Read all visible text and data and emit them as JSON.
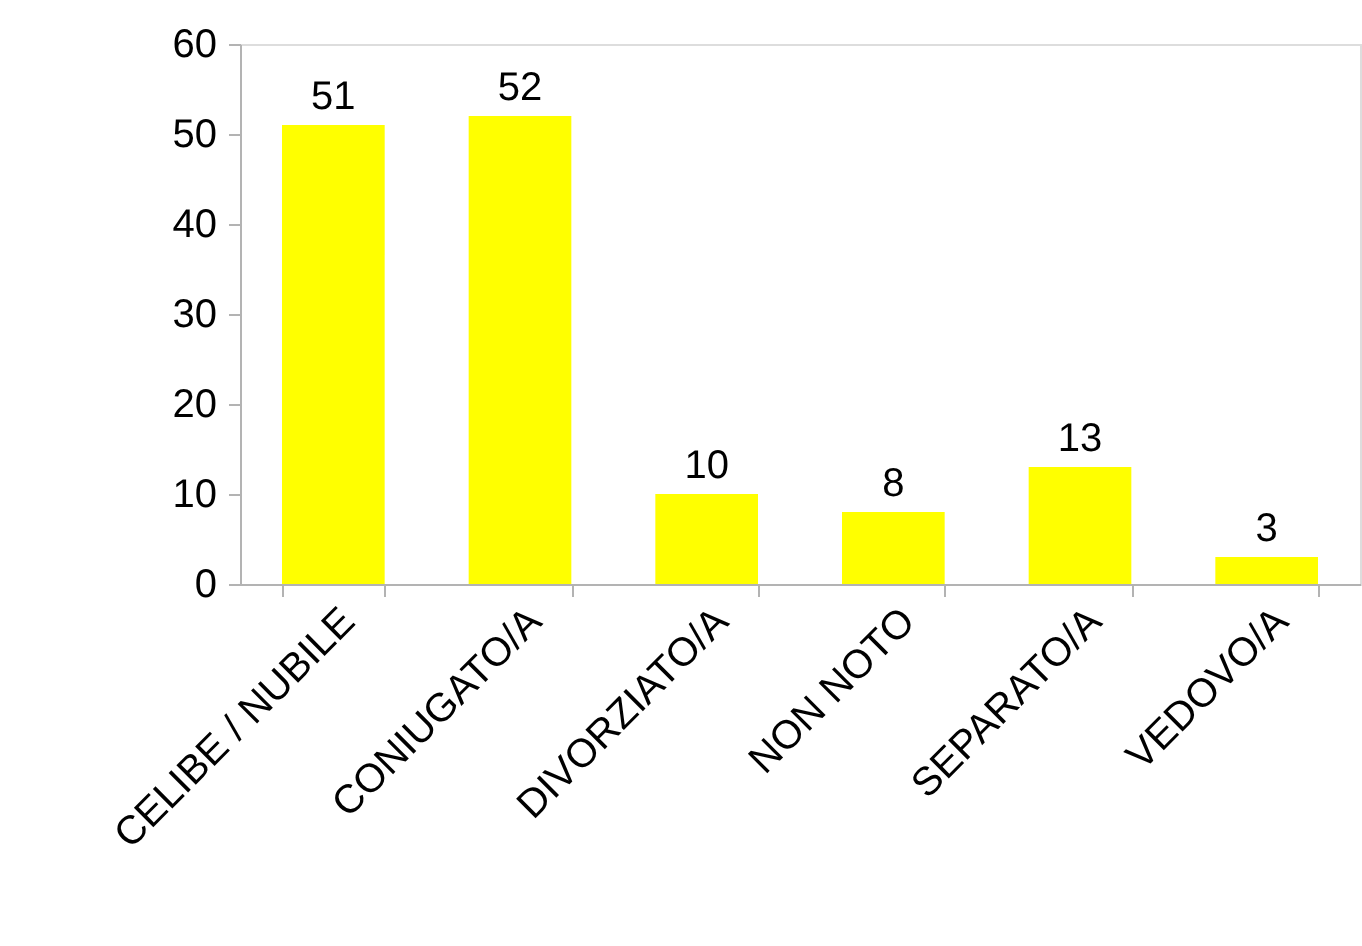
{
  "chart_data": {
    "type": "bar",
    "categories": [
      "CELIBE / NUBILE",
      "CONIUGATO/A",
      "DIVORZIATO/A",
      "NON NOTO",
      "SEPARATO/A",
      "VEDOVO/A"
    ],
    "values": [
      51,
      52,
      10,
      8,
      13,
      3
    ],
    "color": "#ffff00",
    "ylim": [
      0,
      60
    ],
    "yticks": [
      0,
      10,
      20,
      30,
      40,
      50,
      60
    ],
    "grid": false,
    "data_labels": true
  }
}
